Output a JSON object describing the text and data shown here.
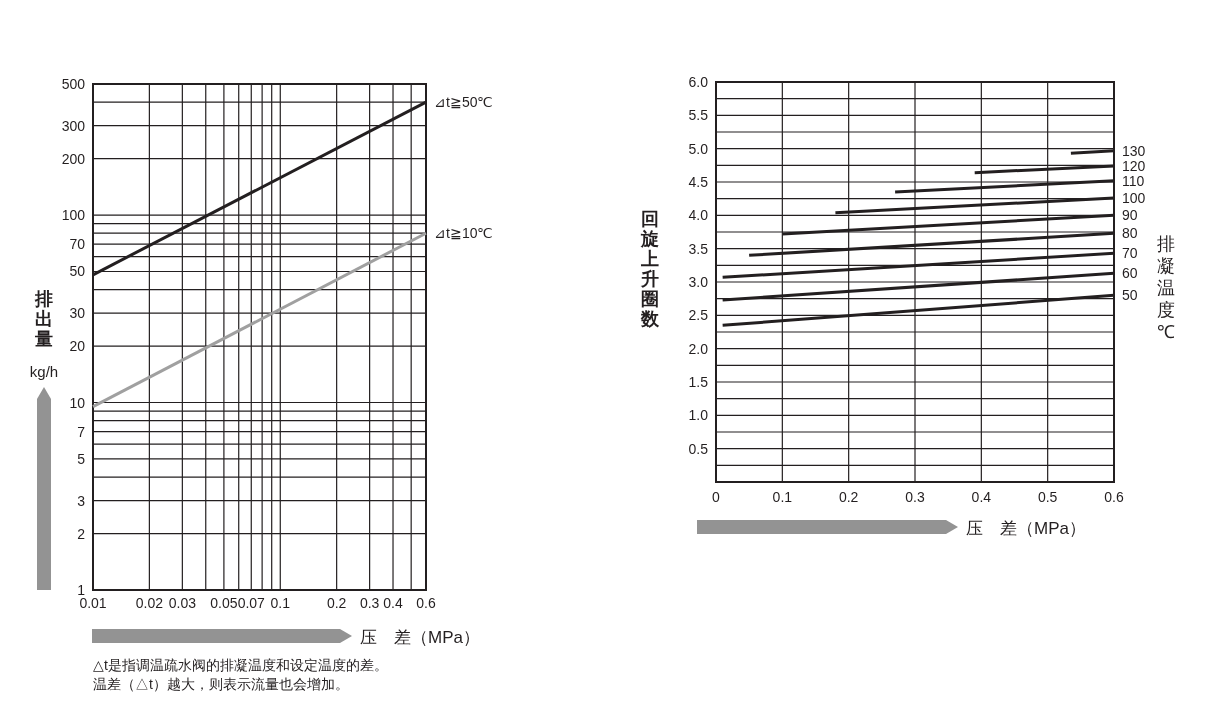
{
  "chart_data": [
    {
      "type": "line",
      "xlabel": "压　差（MPa）",
      "ylabel": "排出量 kg/h",
      "log": "xy",
      "grid": true,
      "legend": false,
      "xlim": [
        0.01,
        0.6
      ],
      "ylim": [
        1,
        500
      ],
      "xticks": [
        0.01,
        0.02,
        0.03,
        {
          "value": 0.04,
          "label": null
        },
        0.05,
        {
          "value": 0.06,
          "label": null
        },
        0.07,
        {
          "value": 0.08,
          "label": null
        },
        {
          "value": 0.09,
          "label": null
        },
        0.1,
        0.2,
        0.3,
        0.4,
        {
          "value": 0.5,
          "label": null
        },
        0.6
      ],
      "yticks": [
        1,
        2,
        3,
        {
          "value": 4,
          "label": null
        },
        5,
        {
          "value": 6,
          "label": null
        },
        7,
        {
          "value": 8,
          "label": null
        },
        {
          "value": 9,
          "label": null
        },
        10,
        20,
        30,
        {
          "value": 40,
          "label": null
        },
        50,
        {
          "value": 60,
          "label": null
        },
        70,
        {
          "value": 80,
          "label": null
        },
        {
          "value": 90,
          "label": null
        },
        100,
        200,
        300,
        {
          "value": 400,
          "label": null
        },
        500
      ],
      "series": [
        {
          "name": "⊿t≧50℃",
          "color": "#231f20",
          "x": [
            0.01,
            0.6
          ],
          "values": [
            48,
            400
          ]
        },
        {
          "name": "⊿t≧10℃",
          "color": "#a0a0a0",
          "x": [
            0.01,
            0.6
          ],
          "values": [
            9.5,
            80
          ]
        }
      ],
      "annotations": [
        "△t是指调温疏水阀的排凝温度和设定温度的差。",
        "温差（△t）越大，则表示流量也会增加。"
      ]
    },
    {
      "type": "line",
      "xlabel": "压　差（MPa）",
      "ylabel": "回旋上升圈数",
      "legend_title": "排凝温度℃",
      "grid": true,
      "legend": false,
      "xlim": [
        0,
        0.6
      ],
      "ylim": [
        0,
        6
      ],
      "xticks": [
        0,
        0.1,
        0.2,
        0.3,
        0.4,
        0.5,
        0.6
      ],
      "yticks": [
        {
          "value": 0,
          "label": null
        },
        {
          "value": 0.25,
          "label": null
        },
        0.5,
        {
          "value": 0.75,
          "label": null
        },
        {
          "value": 1,
          "label": "1.0"
        },
        {
          "value": 1.25,
          "label": null
        },
        1.5,
        {
          "value": 1.75,
          "label": null
        },
        {
          "value": 2,
          "label": "2.0"
        },
        {
          "value": 2.25,
          "label": null
        },
        2.5,
        {
          "value": 2.75,
          "label": null
        },
        {
          "value": 3,
          "label": "3.0"
        },
        {
          "value": 3.25,
          "label": null
        },
        3.5,
        {
          "value": 3.75,
          "label": null
        },
        {
          "value": 4,
          "label": "4.0"
        },
        {
          "value": 4.25,
          "label": null
        },
        4.5,
        {
          "value": 4.75,
          "label": null
        },
        {
          "value": 5,
          "label": "5.0"
        },
        {
          "value": 5.25,
          "label": null
        },
        5.5,
        {
          "value": 5.75,
          "label": null
        },
        {
          "value": 6,
          "label": "6.0"
        }
      ],
      "series": [
        {
          "name": "50",
          "color": "#231f20",
          "x": [
            0.01,
            0.6
          ],
          "values": [
            2.35,
            2.8
          ]
        },
        {
          "name": "60",
          "color": "#231f20",
          "x": [
            0.01,
            0.6
          ],
          "values": [
            2.73,
            3.13
          ]
        },
        {
          "name": "70",
          "color": "#231f20",
          "x": [
            0.01,
            0.6
          ],
          "values": [
            3.07,
            3.43
          ]
        },
        {
          "name": "80",
          "color": "#231f20",
          "x": [
            0.05,
            0.6
          ],
          "values": [
            3.4,
            3.73
          ]
        },
        {
          "name": "90",
          "color": "#231f20",
          "x": [
            0.1,
            0.6
          ],
          "values": [
            3.72,
            4.0
          ]
        },
        {
          "name": "100",
          "color": "#231f20",
          "x": [
            0.18,
            0.6
          ],
          "values": [
            4.04,
            4.26
          ]
        },
        {
          "name": "110",
          "color": "#231f20",
          "x": [
            0.27,
            0.6
          ],
          "values": [
            4.35,
            4.52
          ]
        },
        {
          "name": "120",
          "color": "#231f20",
          "x": [
            0.39,
            0.6
          ],
          "values": [
            4.64,
            4.74
          ]
        },
        {
          "name": "130",
          "color": "#231f20",
          "x": [
            0.535,
            0.6
          ],
          "values": [
            4.93,
            4.97
          ]
        }
      ]
    }
  ]
}
